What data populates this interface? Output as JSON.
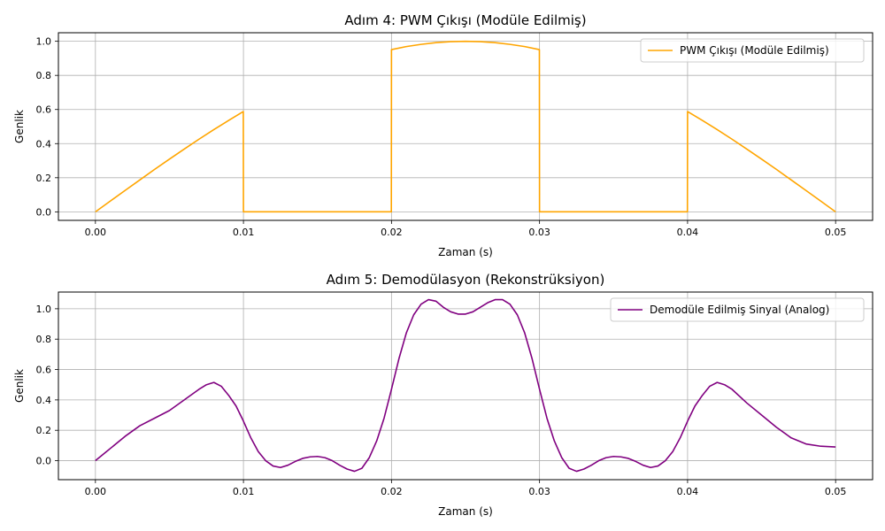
{
  "chart_data": [
    {
      "type": "line",
      "title": "Adım 4: PWM Çıkışı (Modüle Edilmiş)",
      "xlabel": "Zaman (s)",
      "ylabel": "Genlik",
      "xlim": [
        -0.0025,
        0.0525
      ],
      "ylim": [
        -0.05,
        1.05
      ],
      "xticks": [
        0.0,
        0.01,
        0.02,
        0.03,
        0.04,
        0.05
      ],
      "xtick_labels": [
        "0.00",
        "0.01",
        "0.02",
        "0.03",
        "0.04",
        "0.05"
      ],
      "yticks": [
        0.0,
        0.2,
        0.4,
        0.6,
        0.8,
        1.0
      ],
      "ytick_labels": [
        "0.0",
        "0.2",
        "0.4",
        "0.6",
        "0.8",
        "1.0"
      ],
      "grid": true,
      "legend": "upper right",
      "series": [
        {
          "name": "PWM Çıkışı (Modüle Edilmiş)",
          "color": "#ffa500",
          "x": [
            0.0,
            0.001,
            0.002,
            0.003,
            0.004,
            0.005,
            0.006,
            0.007,
            0.008,
            0.009,
            0.00999,
            0.01,
            0.01999,
            0.02,
            0.021,
            0.022,
            0.023,
            0.024,
            0.025,
            0.026,
            0.027,
            0.028,
            0.029,
            0.02999,
            0.03,
            0.03999,
            0.04,
            0.041,
            0.042,
            0.043,
            0.044,
            0.045,
            0.046,
            0.047,
            0.048,
            0.049,
            0.05
          ],
          "y": [
            0.0,
            0.063,
            0.125,
            0.187,
            0.249,
            0.309,
            0.368,
            0.426,
            0.482,
            0.536,
            0.588,
            0.0,
            0.0,
            0.951,
            0.969,
            0.982,
            0.992,
            0.998,
            1.0,
            0.998,
            0.992,
            0.982,
            0.969,
            0.951,
            0.0,
            0.0,
            0.588,
            0.536,
            0.482,
            0.426,
            0.368,
            0.309,
            0.249,
            0.187,
            0.125,
            0.063,
            0.0
          ]
        }
      ]
    },
    {
      "type": "line",
      "title": "Adım 5: Demodülasyon (Rekonstrüksiyon)",
      "xlabel": "Zaman (s)",
      "ylabel": "Genlik",
      "xlim": [
        -0.0025,
        0.0525
      ],
      "ylim": [
        -0.125,
        1.11
      ],
      "xticks": [
        0.0,
        0.01,
        0.02,
        0.03,
        0.04,
        0.05
      ],
      "xtick_labels": [
        "0.00",
        "0.01",
        "0.02",
        "0.03",
        "0.04",
        "0.05"
      ],
      "yticks": [
        0.0,
        0.2,
        0.4,
        0.6,
        0.8,
        1.0
      ],
      "ytick_labels": [
        "0.0",
        "0.2",
        "0.4",
        "0.6",
        "0.8",
        "1.0"
      ],
      "grid": true,
      "legend": "upper right",
      "series": [
        {
          "name": "Demodüle Edilmiş Sinyal (Analog)",
          "color": "#800080",
          "x": [
            0.0,
            0.001,
            0.002,
            0.003,
            0.004,
            0.005,
            0.006,
            0.007,
            0.0075,
            0.008,
            0.0085,
            0.009,
            0.0095,
            0.01,
            0.0105,
            0.011,
            0.0115,
            0.012,
            0.0125,
            0.013,
            0.0135,
            0.014,
            0.0145,
            0.015,
            0.0155,
            0.016,
            0.0165,
            0.017,
            0.0175,
            0.018,
            0.0185,
            0.019,
            0.0195,
            0.02,
            0.0205,
            0.021,
            0.0215,
            0.022,
            0.0225,
            0.023,
            0.0235,
            0.024,
            0.0245,
            0.025,
            0.0255,
            0.026,
            0.0265,
            0.027,
            0.0275,
            0.028,
            0.0285,
            0.029,
            0.0295,
            0.03,
            0.0305,
            0.031,
            0.0315,
            0.032,
            0.0325,
            0.033,
            0.0335,
            0.034,
            0.0345,
            0.035,
            0.0355,
            0.036,
            0.0365,
            0.037,
            0.0375,
            0.038,
            0.0385,
            0.039,
            0.0395,
            0.04,
            0.0405,
            0.041,
            0.0415,
            0.042,
            0.0425,
            0.043,
            0.044,
            0.045,
            0.046,
            0.047,
            0.048,
            0.049,
            0.05
          ],
          "y": [
            0.0,
            0.08,
            0.16,
            0.23,
            0.28,
            0.33,
            0.4,
            0.47,
            0.5,
            0.515,
            0.49,
            0.43,
            0.36,
            0.26,
            0.15,
            0.06,
            0.0,
            -0.035,
            -0.045,
            -0.03,
            -0.005,
            0.015,
            0.025,
            0.028,
            0.02,
            0.0,
            -0.03,
            -0.055,
            -0.07,
            -0.05,
            0.02,
            0.13,
            0.28,
            0.47,
            0.67,
            0.84,
            0.96,
            1.03,
            1.06,
            1.05,
            1.01,
            0.98,
            0.965,
            0.965,
            0.98,
            1.01,
            1.04,
            1.06,
            1.06,
            1.03,
            0.96,
            0.84,
            0.67,
            0.47,
            0.28,
            0.13,
            0.02,
            -0.05,
            -0.07,
            -0.055,
            -0.03,
            0.0,
            0.02,
            0.028,
            0.025,
            0.015,
            -0.005,
            -0.03,
            -0.045,
            -0.035,
            0.0,
            0.06,
            0.15,
            0.26,
            0.36,
            0.43,
            0.49,
            0.515,
            0.5,
            0.47,
            0.38,
            0.3,
            0.22,
            0.15,
            0.11,
            0.095,
            0.09
          ]
        }
      ]
    }
  ]
}
